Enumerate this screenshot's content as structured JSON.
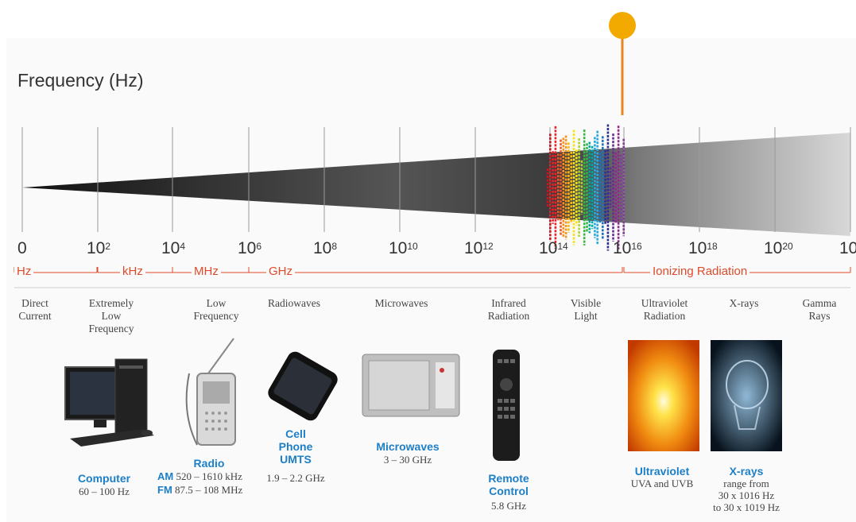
{
  "title": "Frequency (Hz)",
  "axis": {
    "ticks": [
      {
        "base": "0",
        "exp": ""
      },
      {
        "base": "10",
        "exp": "2"
      },
      {
        "base": "10",
        "exp": "4"
      },
      {
        "base": "10",
        "exp": "6"
      },
      {
        "base": "10",
        "exp": "8"
      },
      {
        "base": "10",
        "exp": "10"
      },
      {
        "base": "10",
        "exp": "12"
      },
      {
        "base": "10",
        "exp": "14"
      },
      {
        "base": "10",
        "exp": "16"
      },
      {
        "base": "10",
        "exp": "18"
      },
      {
        "base": "10",
        "exp": "20"
      },
      {
        "base": "10",
        "exp": ""
      }
    ],
    "marker_value": "10^16"
  },
  "bands": [
    "Hz",
    "kHz",
    "MHz",
    "GHz",
    "Ionizing Radiation"
  ],
  "regions": [
    "Direct\nCurrent",
    "Extremely\nLow\nFrequency",
    "Low\nFrequency",
    "Radiowaves",
    "Microwaves",
    "Infrared\nRadiation",
    "Visible\nLight",
    "Ultraviolet\nRadiation",
    "X-rays",
    "Gamma\nRays"
  ],
  "devices": {
    "computer": {
      "title": "Computer",
      "sub": "60 – 100 Hz"
    },
    "radio": {
      "title": "Radio",
      "am_label": "AM",
      "am_range": "520 – 1610 kHz",
      "fm_label": "FM",
      "fm_range": "87.5 – 108 MHz"
    },
    "phone": {
      "title": "Cell\nPhone\nUMTS",
      "sub": "1.9 – 2.2 GHz"
    },
    "microwave": {
      "title": "Microwaves",
      "sub": "3 – 30 GHz"
    },
    "remote": {
      "title": "Remote\nControl",
      "sub": "5.8 GHz"
    },
    "ultraviolet": {
      "title": "Ultraviolet",
      "sub": "UVA and UVB"
    },
    "xray": {
      "title": "X-rays",
      "sub": "range from\n30 x 1016 Hz\nto 30 x 1019 Hz"
    }
  },
  "colors": {
    "accent": "#1d7fc6",
    "band_labels": "#e04a2a",
    "marker": "#f2a900",
    "marker_line": "#e8871e"
  }
}
